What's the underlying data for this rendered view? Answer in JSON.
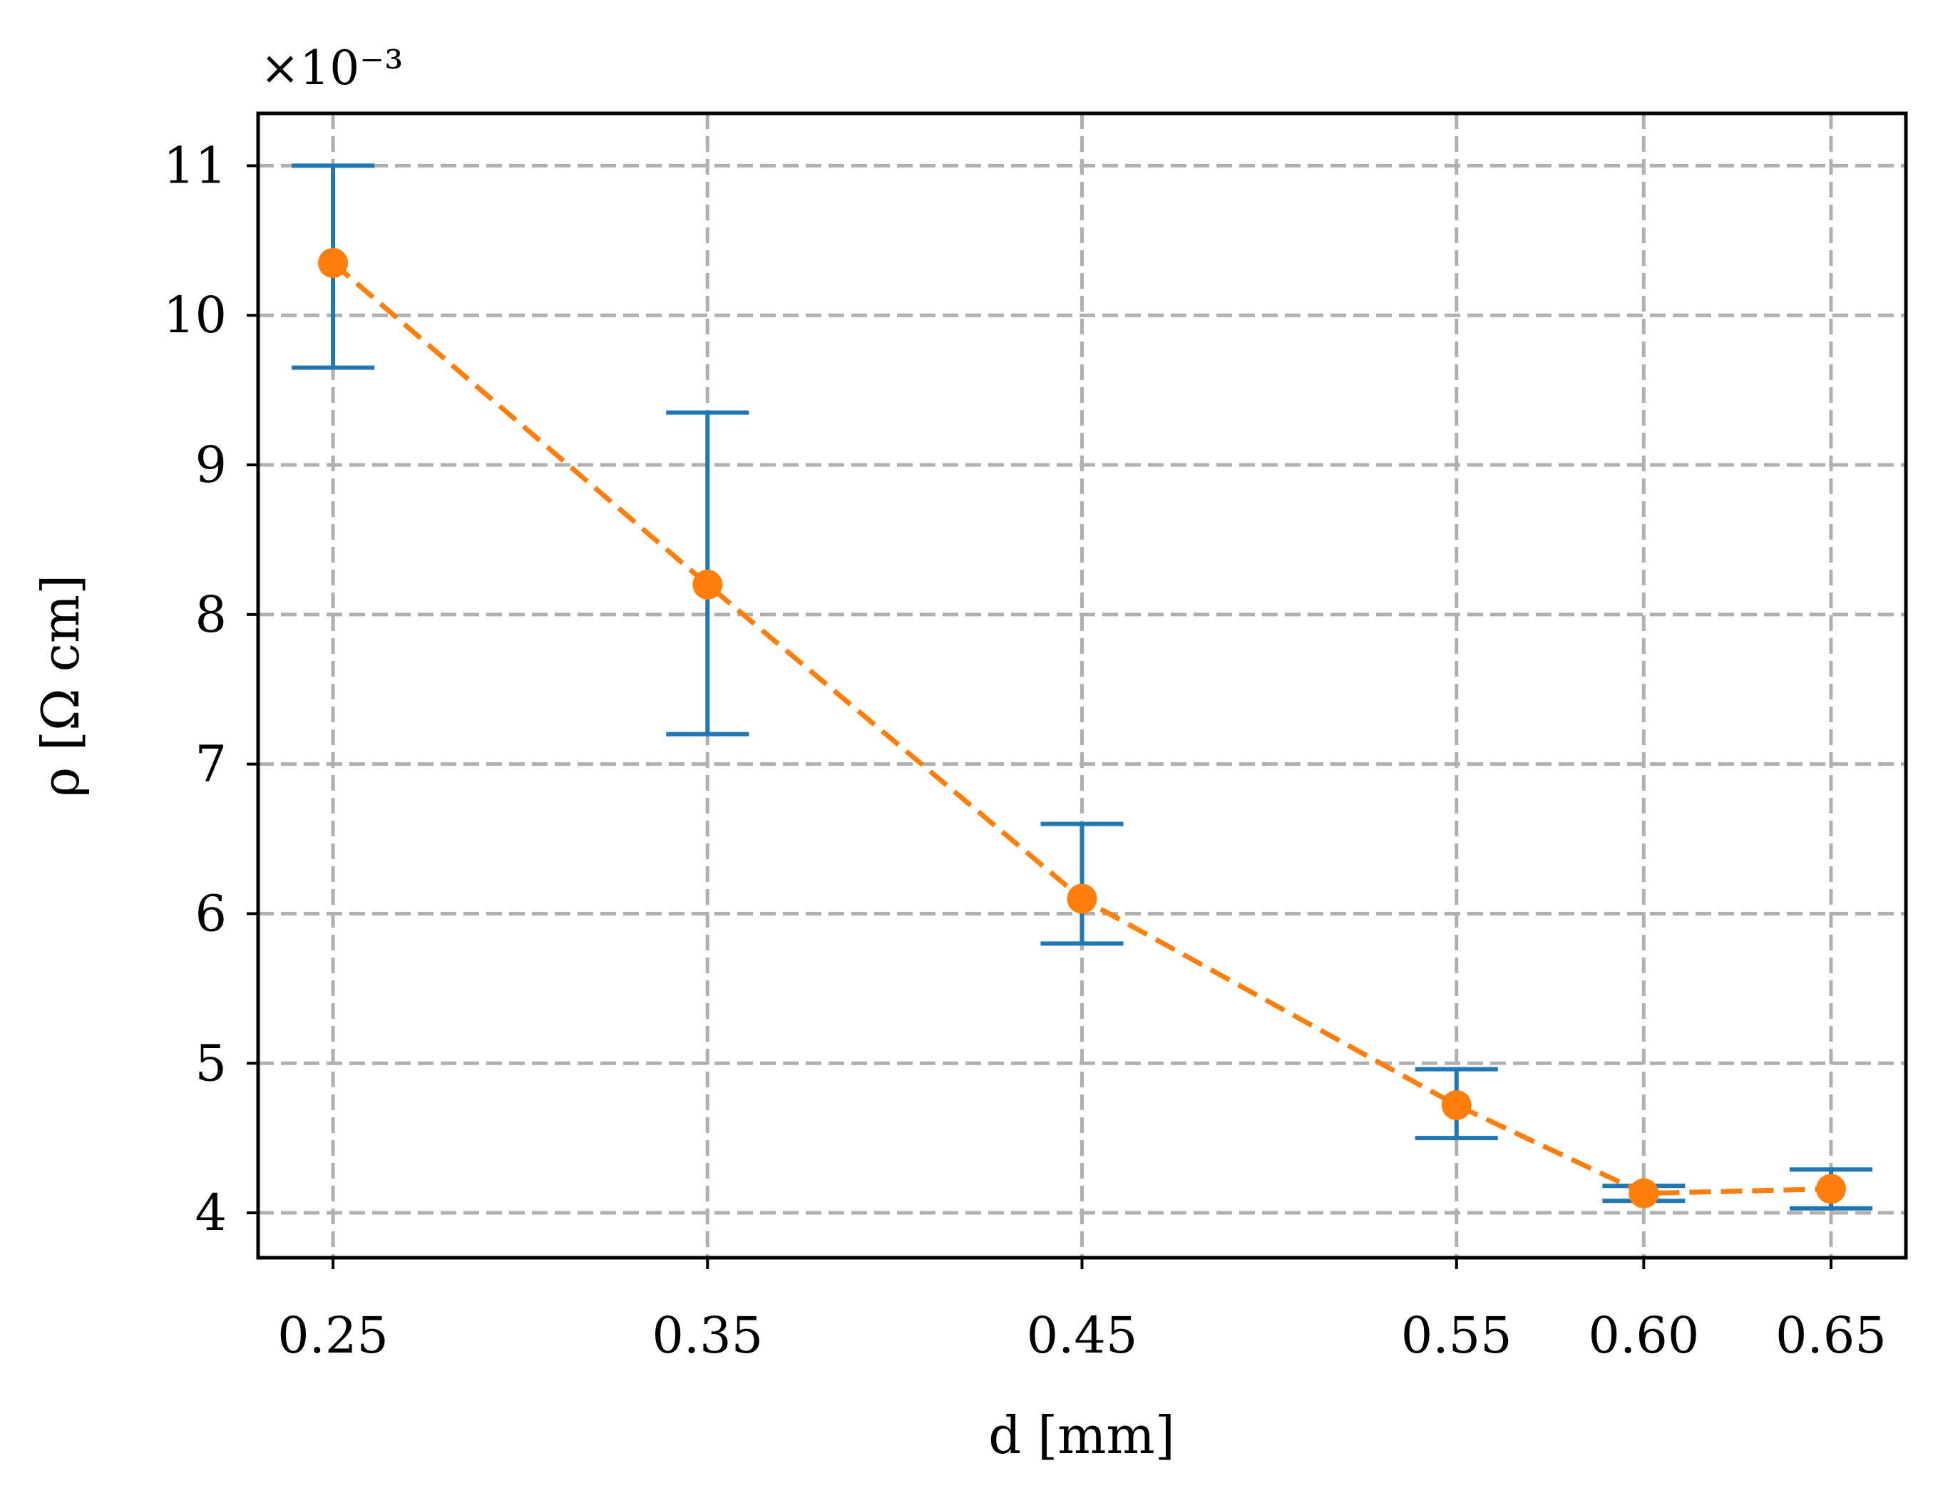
{
  "chart_data": {
    "type": "line",
    "x": [
      0.25,
      0.35,
      0.45,
      0.55,
      0.6,
      0.65
    ],
    "x_ticks": [
      "0.25",
      "0.35",
      "0.45",
      "0.55",
      "0.60",
      "0.65"
    ],
    "xlim": [
      0.23,
      0.67
    ],
    "y_scale_multiplier": "×10⁻³",
    "y_ticks": [
      4,
      5,
      6,
      7,
      8,
      9,
      10,
      11
    ],
    "y_tick_labels": [
      "4",
      "5",
      "6",
      "7",
      "8",
      "9",
      "10",
      "11"
    ],
    "ylim": [
      3.7,
      11.35
    ],
    "xlabel": "d [mm]",
    "ylabel": "ρ [Ω cm]",
    "grid": true,
    "series": [
      {
        "kind": "errorbar",
        "color": "#1f77b4",
        "low": [
          9.65,
          7.2,
          5.8,
          4.5,
          4.08,
          4.03
        ],
        "high": [
          11.0,
          9.35,
          6.6,
          4.96,
          4.18,
          4.29
        ]
      },
      {
        "kind": "line-markers",
        "color": "#ff7f0e",
        "line_style": "dashed",
        "values": [
          10.35,
          8.2,
          6.1,
          4.72,
          4.13,
          4.16
        ]
      }
    ]
  }
}
